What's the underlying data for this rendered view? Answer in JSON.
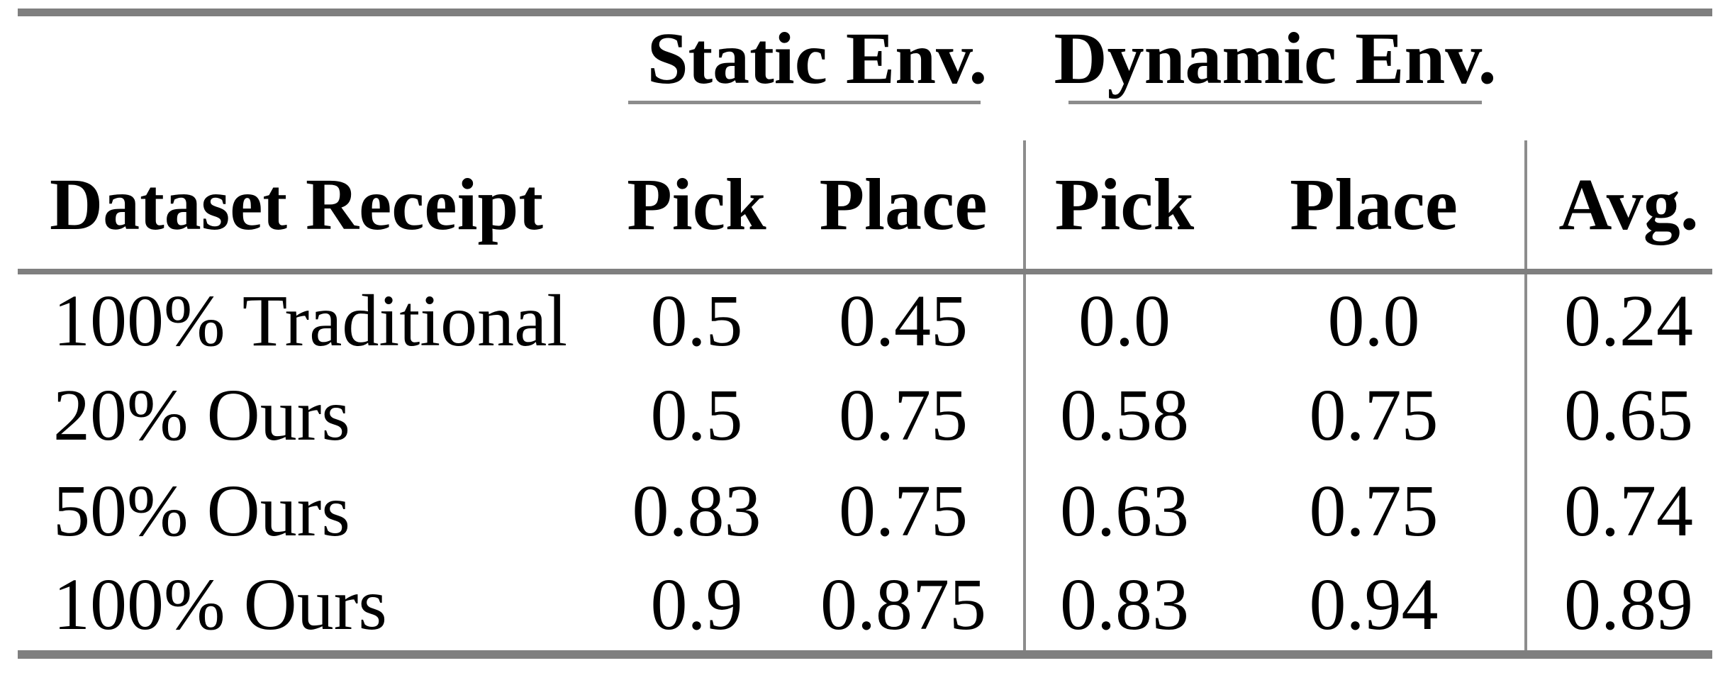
{
  "table": {
    "group_headers": {
      "static": "Static Env.",
      "dynamic": "Dynamic Env."
    },
    "column_headers": {
      "dataset": "Dataset Receipt",
      "static_pick": "Pick",
      "static_place": "Place",
      "dynamic_pick": "Pick",
      "dynamic_place": "Place",
      "avg": "Avg."
    },
    "rows": [
      {
        "dataset": "100% Traditional",
        "static_pick": "0.5",
        "static_place": "0.45",
        "dynamic_pick": "0.0",
        "dynamic_place": "0.0",
        "avg": "0.24"
      },
      {
        "dataset": "20% Ours",
        "static_pick": "0.5",
        "static_place": "0.75",
        "dynamic_pick": "0.58",
        "dynamic_place": "0.75",
        "avg": "0.65"
      },
      {
        "dataset": "50% Ours",
        "static_pick": "0.83",
        "static_place": "0.75",
        "dynamic_pick": "0.63",
        "dynamic_place": "0.75",
        "avg": "0.74"
      },
      {
        "dataset": "100% Ours",
        "static_pick": "0.9",
        "static_place": "0.875",
        "dynamic_pick": "0.83",
        "dynamic_place": "0.94",
        "avg": "0.89"
      }
    ],
    "colors": {
      "rule_heavy": "#7f7f7f",
      "rule_light": "#8c8c8c",
      "text": "#000000",
      "background": "#ffffff"
    }
  },
  "chart_data": {
    "type": "table",
    "columns": [
      "Dataset Receipt",
      "Static Env. Pick",
      "Static Env. Place",
      "Dynamic Env. Pick",
      "Dynamic Env. Place",
      "Avg."
    ],
    "rows": [
      [
        "100% Traditional",
        0.5,
        0.45,
        0.0,
        0.0,
        0.24
      ],
      [
        "20% Ours",
        0.5,
        0.75,
        0.58,
        0.75,
        0.65
      ],
      [
        "50% Ours",
        0.83,
        0.75,
        0.63,
        0.75,
        0.74
      ],
      [
        "100% Ours",
        0.9,
        0.875,
        0.83,
        0.94,
        0.89
      ]
    ]
  }
}
